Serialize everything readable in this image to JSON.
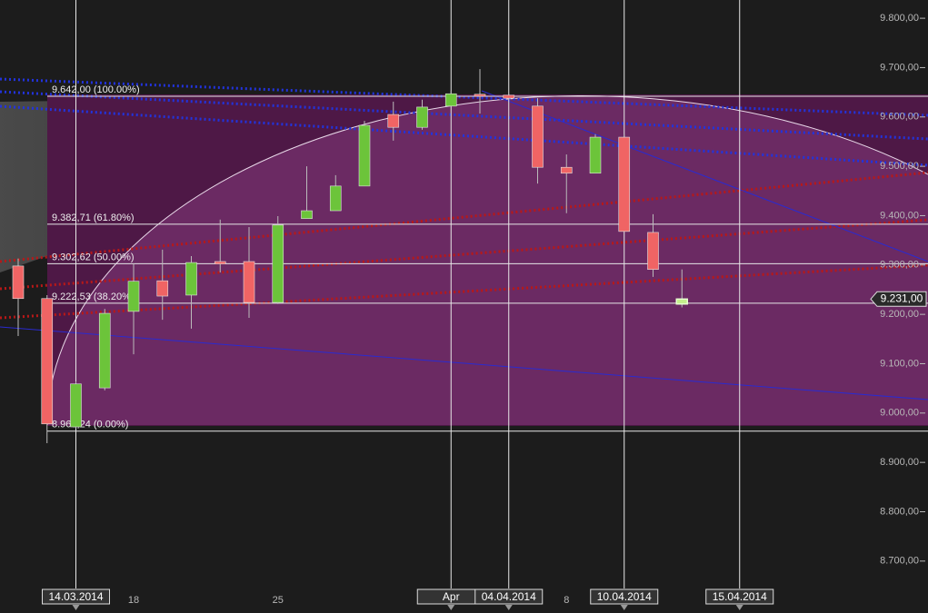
{
  "chart_data": {
    "type": "candlestick",
    "categories": [
      null,
      null,
      "14.03.2014",
      null,
      "18",
      null,
      null,
      null,
      null,
      "25",
      null,
      null,
      null,
      null,
      null,
      "Apr",
      null,
      "04.04.2014",
      null,
      "8",
      null,
      "10.04.2014",
      null,
      null,
      null,
      "15.04.2014"
    ],
    "open": [
      9298,
      9232,
      8972,
      9051,
      9206,
      9268,
      9239,
      9307,
      9307,
      9224,
      9394,
      9410,
      9460,
      9605,
      9579,
      9622,
      9646,
      9644,
      9622,
      9498,
      9486,
      9559,
      9366,
      9221,
      null,
      null
    ],
    "high": [
      9313,
      9239,
      9064,
      9211,
      9303,
      9331,
      9318,
      9392,
      9377,
      9399,
      9500,
      9482,
      9592,
      9631,
      9635,
      9653,
      9697,
      9647,
      9638,
      9524,
      9565,
      9565,
      9403,
      9291,
      null,
      null
    ],
    "low": [
      9156,
      8939,
      8969,
      9046,
      9119,
      9189,
      9171,
      9285,
      9193,
      9221,
      9394,
      9410,
      9460,
      9552,
      9574,
      9622,
      9607,
      9635,
      9465,
      9405,
      9486,
      9368,
      9276,
      9214,
      null,
      null
    ],
    "close": [
      9232,
      8978,
      9059,
      9202,
      9267,
      9237,
      9305,
      9302,
      9224,
      9381,
      9410,
      9460,
      9583,
      9579,
      9620,
      9647,
      9642,
      9638,
      9498,
      9486,
      9559,
      9368,
      9291,
      9231,
      null,
      null
    ],
    "up_color": "#6cc43a",
    "down_color": "#f06464",
    "ylim": [
      8650,
      9837
    ],
    "yticks": [
      {
        "value": 8700,
        "label": "8.700,00"
      },
      {
        "value": 8800,
        "label": "8.800,00"
      },
      {
        "value": 8900,
        "label": "8.900,00"
      },
      {
        "value": 9000,
        "label": "9.000,00"
      },
      {
        "value": 9100,
        "label": "9.100,00"
      },
      {
        "value": 9200,
        "label": "9.200,00"
      },
      {
        "value": 9300,
        "label": "9.300,00"
      },
      {
        "value": 9400,
        "label": "9.400,00"
      },
      {
        "value": 9500,
        "label": "9.500,00"
      },
      {
        "value": 9600,
        "label": "9.600,00"
      },
      {
        "value": 9700,
        "label": "9.700,00"
      },
      {
        "value": 9800,
        "label": "9.800,00"
      }
    ],
    "fib_levels": [
      {
        "value": 9642.0,
        "label": "9.642,00 (100.00%)"
      },
      {
        "value": 9382.71,
        "label": "9.382,71 (61.80%)"
      },
      {
        "value": 9302.62,
        "label": "9.302,62 (50.00%)"
      },
      {
        "value": 9222.53,
        "label": "9.222,53 (38.20%)"
      },
      {
        "value": 8963.24,
        "label": "8.963,24 (0.00%)"
      }
    ],
    "last_price": {
      "value": 9231,
      "label": "9.231,00"
    }
  }
}
